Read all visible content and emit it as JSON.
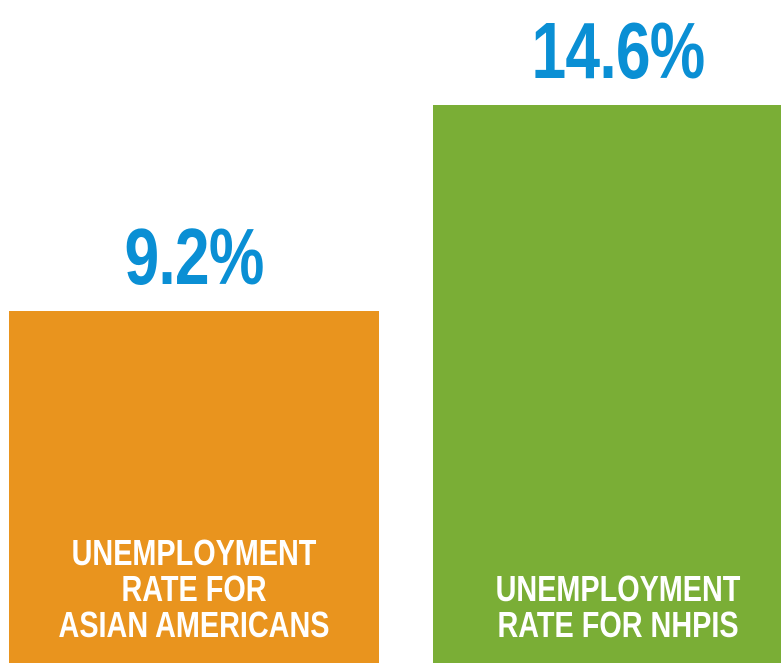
{
  "chart_data": {
    "type": "bar",
    "categories": [
      [
        "UNEMPLOYMENT",
        "RATE FOR",
        "ASIAN AMERICANS"
      ],
      [
        "UNEMPLOYMENT",
        "RATE FOR NHPIs"
      ]
    ],
    "values": [
      9.2,
      14.6
    ],
    "value_labels": [
      "9.2%",
      "14.6%"
    ],
    "colors": [
      "#e9941e",
      "#7aae36"
    ],
    "value_label_color": "#0a8fd4",
    "unit": "%"
  }
}
